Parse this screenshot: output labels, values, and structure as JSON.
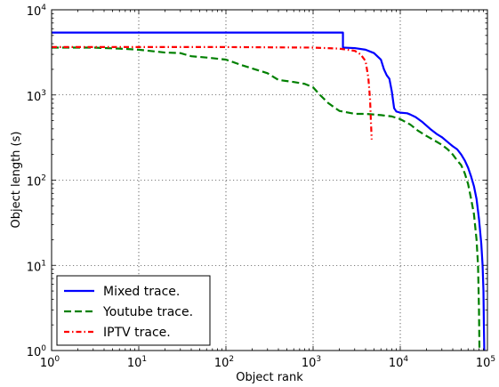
{
  "chart_data": {
    "type": "line",
    "xlabel": "Object rank",
    "ylabel": "Object length (s)",
    "xscale": "log",
    "yscale": "log",
    "xlim": [
      1,
      100000
    ],
    "ylim": [
      1,
      10000
    ],
    "grid": true,
    "legend_position": "bottom-left",
    "x_ticks": [
      {
        "value": 1,
        "base": "10",
        "exp": "0"
      },
      {
        "value": 10,
        "base": "10",
        "exp": "1"
      },
      {
        "value": 100,
        "base": "10",
        "exp": "2"
      },
      {
        "value": 1000,
        "base": "10",
        "exp": "3"
      },
      {
        "value": 10000,
        "base": "10",
        "exp": "4"
      },
      {
        "value": 100000,
        "base": "10",
        "exp": "5"
      }
    ],
    "y_ticks": [
      {
        "value": 1,
        "base": "10",
        "exp": "0"
      },
      {
        "value": 10,
        "base": "10",
        "exp": "1"
      },
      {
        "value": 100,
        "base": "10",
        "exp": "2"
      },
      {
        "value": 1000,
        "base": "10",
        "exp": "3"
      },
      {
        "value": 10000,
        "base": "10",
        "exp": "4"
      }
    ],
    "series": [
      {
        "name": "Mixed trace.",
        "color": "#0000ff",
        "style": "solid",
        "points": [
          [
            1,
            5400
          ],
          [
            2200,
            5400
          ],
          [
            2200,
            3600
          ],
          [
            3000,
            3550
          ],
          [
            4000,
            3400
          ],
          [
            5000,
            3100
          ],
          [
            6000,
            2600
          ],
          [
            6500,
            2000
          ],
          [
            7000,
            1700
          ],
          [
            7500,
            1550
          ],
          [
            8000,
            1100
          ],
          [
            8500,
            700
          ],
          [
            9000,
            640
          ],
          [
            10000,
            620
          ],
          [
            12000,
            610
          ],
          [
            13000,
            590
          ],
          [
            15000,
            550
          ],
          [
            18000,
            480
          ],
          [
            22000,
            400
          ],
          [
            26000,
            350
          ],
          [
            30000,
            320
          ],
          [
            35000,
            280
          ],
          [
            40000,
            250
          ],
          [
            45000,
            230
          ],
          [
            50000,
            200
          ],
          [
            55000,
            170
          ],
          [
            60000,
            140
          ],
          [
            65000,
            110
          ],
          [
            70000,
            85
          ],
          [
            75000,
            60
          ],
          [
            80000,
            35
          ],
          [
            85000,
            18
          ],
          [
            88000,
            10
          ],
          [
            90000,
            5
          ],
          [
            91000,
            2
          ],
          [
            92000,
            1
          ]
        ]
      },
      {
        "name": "Youtube trace.",
        "color": "#008000",
        "style": "dashed",
        "points": [
          [
            1,
            3600
          ],
          [
            3,
            3600
          ],
          [
            6,
            3500
          ],
          [
            10,
            3400
          ],
          [
            20,
            3150
          ],
          [
            30,
            3100
          ],
          [
            40,
            2850
          ],
          [
            60,
            2750
          ],
          [
            100,
            2600
          ],
          [
            150,
            2250
          ],
          [
            200,
            2050
          ],
          [
            300,
            1800
          ],
          [
            400,
            1500
          ],
          [
            600,
            1420
          ],
          [
            800,
            1350
          ],
          [
            1000,
            1230
          ],
          [
            1200,
            1000
          ],
          [
            1500,
            800
          ],
          [
            2000,
            650
          ],
          [
            3000,
            600
          ],
          [
            4000,
            600
          ],
          [
            6000,
            580
          ],
          [
            8000,
            560
          ],
          [
            10000,
            520
          ],
          [
            13000,
            450
          ],
          [
            16000,
            380
          ],
          [
            20000,
            330
          ],
          [
            25000,
            290
          ],
          [
            30000,
            260
          ],
          [
            35000,
            230
          ],
          [
            40000,
            200
          ],
          [
            45000,
            170
          ],
          [
            50000,
            150
          ],
          [
            55000,
            120
          ],
          [
            60000,
            90
          ],
          [
            65000,
            60
          ],
          [
            70000,
            40
          ],
          [
            75000,
            20
          ],
          [
            78000,
            10
          ],
          [
            80000,
            3
          ],
          [
            81000,
            1
          ]
        ]
      },
      {
        "name": "IPTV trace.",
        "color": "#ff0000",
        "style": "dashdot",
        "points": [
          [
            1,
            3650
          ],
          [
            100,
            3650
          ],
          [
            1000,
            3600
          ],
          [
            2000,
            3500
          ],
          [
            3000,
            3300
          ],
          [
            3500,
            3000
          ],
          [
            4000,
            2500
          ],
          [
            4300,
            1600
          ],
          [
            4500,
            900
          ],
          [
            4600,
            500
          ],
          [
            4700,
            300
          ]
        ]
      }
    ]
  }
}
